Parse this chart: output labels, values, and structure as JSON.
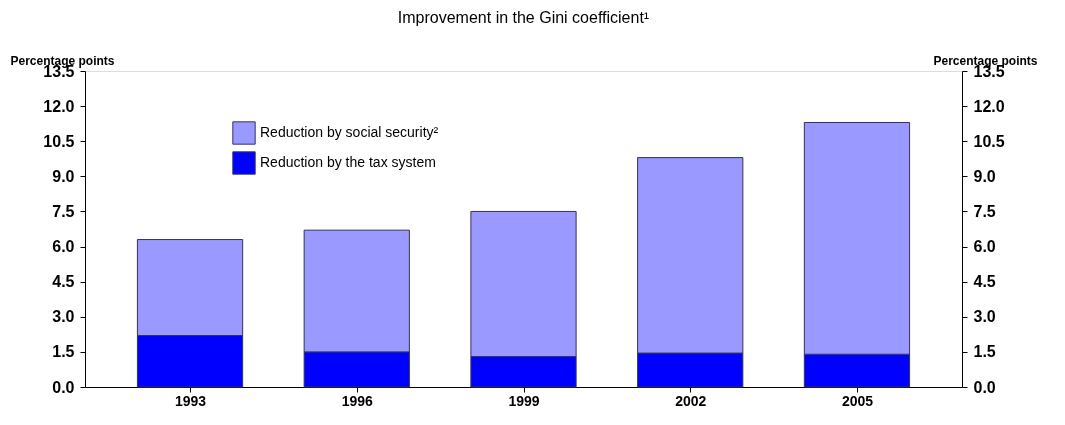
{
  "chart_data": {
    "type": "bar",
    "title": "Improvement in the Gini coefficient¹",
    "ylabel": "Percentage points",
    "y2label": "Percentage points",
    "categories": [
      "1993",
      "1996",
      "1999",
      "2002",
      "2005"
    ],
    "stacked": true,
    "series": [
      {
        "name": "Reduction by the tax system",
        "color": "#0000ff",
        "values": [
          2.2,
          1.5,
          1.3,
          1.45,
          1.4
        ]
      },
      {
        "name": "Reduction by social security²",
        "color": "#9999ff",
        "values": [
          4.1,
          5.2,
          6.2,
          8.35,
          9.9
        ]
      }
    ],
    "ylim": [
      0,
      13.5
    ],
    "yticks": [
      {
        "value": 0,
        "label": "0.0"
      },
      1.5,
      {
        "value": 3,
        "label": "3.0"
      },
      4.5,
      {
        "value": 6,
        "label": "6.0"
      },
      7.5,
      {
        "value": 9,
        "label": "9.0"
      },
      10.5,
      {
        "value": 12,
        "label": "12.0"
      },
      13.5
    ],
    "y2lim": [
      0,
      13.5
    ],
    "y2ticks": [
      {
        "value": 0,
        "label": "0.0"
      },
      1.5,
      {
        "value": 3,
        "label": "3.0"
      },
      4.5,
      {
        "value": 6,
        "label": "6.0"
      },
      7.5,
      {
        "value": 9,
        "label": "9.0"
      },
      10.5,
      {
        "value": 12,
        "label": "12.0"
      },
      13.5
    ],
    "legend": "top left",
    "grid": false
  }
}
